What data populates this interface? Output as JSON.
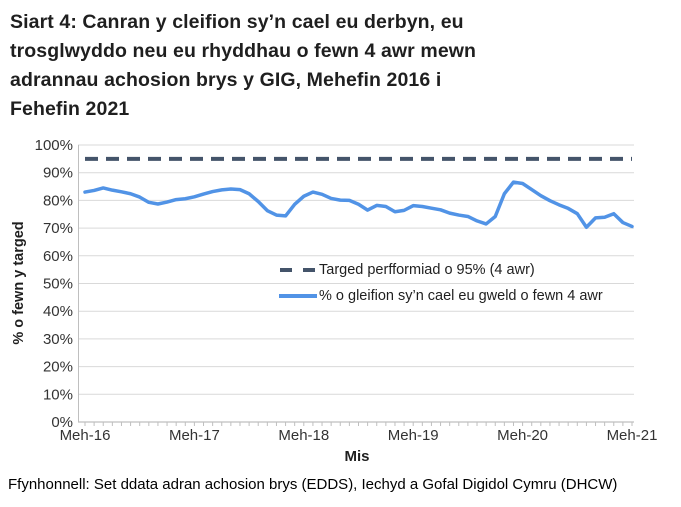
{
  "header": {
    "title_lines": [
      "Siart 4: Canran y cleifion sy’n cael eu derbyn, eu",
      "trosglwyddo neu eu rhyddhau o fewn 4 awr mewn",
      "adrannau achosion brys y GIG, Mehefin 2016 i",
      "Fehefin 2021"
    ]
  },
  "chart_data": {
    "type": "line",
    "title": "",
    "xlabel": "Mis",
    "ylabel": "% o fewn y targed",
    "ylim": [
      0,
      100
    ],
    "y_tick_step": 10,
    "y_tick_suffix": "%",
    "grid": true,
    "legend_position": "middle-right",
    "x_tick_labels": [
      "Meh-16",
      "Meh-17",
      "Meh-18",
      "Meh-19",
      "Meh-20",
      "Meh-21"
    ],
    "x_tick_months": [
      0,
      12,
      24,
      36,
      48,
      60
    ],
    "x_range_months": 60,
    "series": [
      {
        "name": "Targed perfformiad o 95% (4 awr)",
        "type": "constant-target",
        "value": 95,
        "style": "dashed",
        "color": "#44546a"
      },
      {
        "name": "% o gleifion sy’n cael eu gweld o fewn 4 awr",
        "type": "monthly",
        "start": "Meh-16",
        "end": "Meh-21",
        "style": "solid",
        "color": "#5193e6",
        "values": [
          83.0,
          83.6,
          84.5,
          83.7,
          83.1,
          82.4,
          81.2,
          79.3,
          78.7,
          79.4,
          80.3,
          80.6,
          81.3,
          82.3,
          83.2,
          83.8,
          84.1,
          83.9,
          82.4,
          79.6,
          76.3,
          74.7,
          74.4,
          78.6,
          81.5,
          83.0,
          82.2,
          80.7,
          80.1,
          80.0,
          78.6,
          76.5,
          78.2,
          77.8,
          75.9,
          76.4,
          78.1,
          77.8,
          77.2,
          76.6,
          75.4,
          74.7,
          74.2,
          72.6,
          71.5,
          74.2,
          82.4,
          86.6,
          86.1,
          83.9,
          81.7,
          79.9,
          78.4,
          77.1,
          75.2,
          70.3,
          73.7,
          73.9,
          75.2,
          72.0,
          70.6
        ]
      }
    ]
  },
  "footer": {
    "source": "Ffynhonnell: Set ddata adran achosion brys (EDDS), Iechyd a Gofal Digidol Cymru (DHCW)"
  },
  "colors": {
    "background": "#ffffff",
    "title_text": "#1f1f1f",
    "tick_text": "#333333",
    "gridline": "#d9d9d9",
    "axis_line": "#bfbfbf",
    "target_line": "#44546a",
    "series_line": "#5193e6"
  }
}
